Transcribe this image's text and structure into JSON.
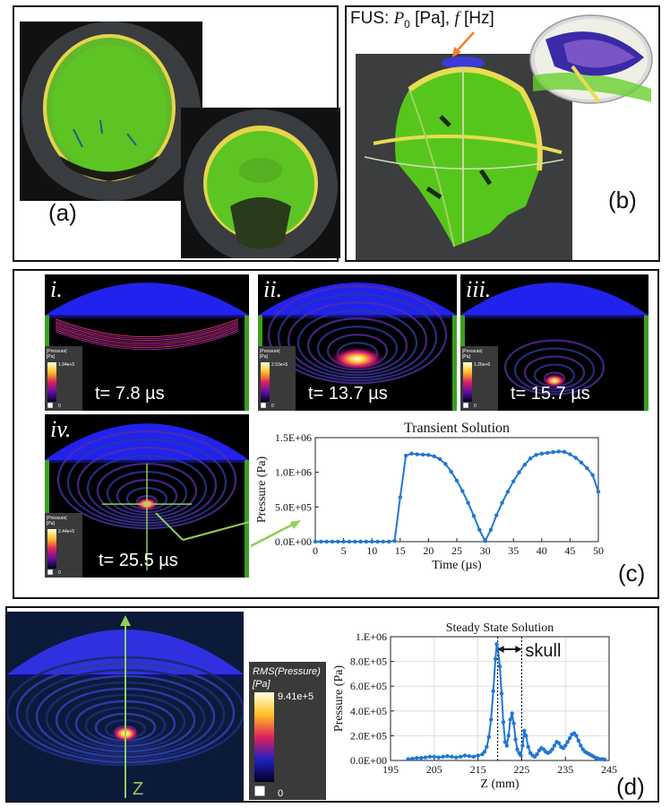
{
  "panels": {
    "a": {
      "label": "(a)"
    },
    "b": {
      "label": "(b)",
      "fus_prefix": "FUS: ",
      "fus_p": "P",
      "fus_sub": "0",
      "fus_unit1": " [Pa], ",
      "fus_f": "f",
      "fus_unit2": " [Hz]"
    },
    "c": {
      "label": "(c)"
    },
    "d": {
      "label": "(d)"
    }
  },
  "snapshots": [
    {
      "roman": "i.",
      "time": "t= 7.8 µs",
      "cb_title": "|Pressure|",
      "cb_unit": "[Pa]",
      "cb_max": "1.94e+5",
      "cb_min": "0"
    },
    {
      "roman": "ii.",
      "time": "t= 13.7 µs",
      "cb_title": "|Pressure|",
      "cb_unit": "[Pa]",
      "cb_max": "2.53e+5",
      "cb_min": "0"
    },
    {
      "roman": "iii.",
      "time": "t= 15.7 µs",
      "cb_title": "|Pressure|",
      "cb_unit": "[Pa]",
      "cb_max": "1.26e+6",
      "cb_min": "0"
    },
    {
      "roman": "iv.",
      "time": "t= 25.5 µs",
      "cb_title": "|Pressure|",
      "cb_unit": "[Pa]",
      "cb_max": "2.44e+5",
      "cb_min": "0"
    }
  ],
  "steady_sim": {
    "axis_label": "Z",
    "cb_title": "RMS(Pressure)",
    "cb_unit": "[Pa]",
    "cb_max": "9.41e+5",
    "cb_min": "0"
  },
  "colors": {
    "green": "#66cc33",
    "tissue": "#4ec41e",
    "skull": "#e8dc50",
    "transducer": "#2222ee",
    "plot_blue": "#1f77d4",
    "arrow_green": "#8fcf5a"
  },
  "chart_data": [
    {
      "type": "line",
      "title": "Transient Solution",
      "xlabel": "Time (µs)",
      "ylabel": "Pressure (Pa)",
      "xlim": [
        0,
        50
      ],
      "ylim": [
        0,
        1500000
      ],
      "xticks": [
        0,
        5,
        10,
        15,
        20,
        25,
        30,
        35,
        40,
        45,
        50
      ],
      "xtick_labels": [
        "0",
        "5",
        "10",
        "15",
        "20",
        "25",
        "30",
        "35",
        "40",
        "45",
        "50"
      ],
      "yticks": [
        0,
        500000,
        1000000,
        1500000
      ],
      "ytick_labels": [
        "0.0E+00",
        "5.0E+05",
        "1.0E+06",
        "1.5E+06"
      ],
      "grid": false,
      "x": [
        0,
        1,
        2,
        3,
        4,
        5,
        6,
        7,
        8,
        9,
        10,
        11,
        12,
        13,
        14,
        15,
        16,
        17,
        18,
        19,
        20,
        21,
        22,
        23,
        24,
        25,
        26,
        27,
        28,
        29,
        30,
        31,
        32,
        33,
        34,
        35,
        36,
        37,
        38,
        39,
        40,
        41,
        42,
        43,
        44,
        45,
        46,
        47,
        48,
        49,
        50
      ],
      "y": [
        0,
        0,
        0,
        0,
        0,
        0,
        0,
        0,
        0,
        0,
        0,
        0,
        0,
        0,
        10000,
        640000,
        1240000,
        1270000,
        1260000,
        1255000,
        1250000,
        1230000,
        1190000,
        1120000,
        1010000,
        880000,
        730000,
        560000,
        370000,
        170000,
        10000,
        170000,
        380000,
        560000,
        720000,
        870000,
        1000000,
        1110000,
        1200000,
        1250000,
        1270000,
        1280000,
        1290000,
        1300000,
        1295000,
        1260000,
        1210000,
        1140000,
        1060000,
        960000,
        720000
      ]
    },
    {
      "type": "line",
      "title": "Steady State Solution",
      "xlabel": "Z (mm)",
      "ylabel": "Pressure (Pa)",
      "xlim": [
        195,
        245
      ],
      "ylim": [
        0,
        1000000
      ],
      "xticks": [
        195,
        205,
        215,
        225,
        235,
        245
      ],
      "xtick_labels": [
        "195",
        "205",
        "215",
        "225",
        "235",
        "245"
      ],
      "yticks": [
        0,
        200000,
        400000,
        600000,
        800000,
        1000000
      ],
      "ytick_labels": [
        "0.0E+00",
        "2.0E+05",
        "4.0E+05",
        "6.0E+05",
        "8.0E+05",
        "1.E+06"
      ],
      "grid": true,
      "annotation": "skull",
      "vlines": [
        219.5,
        225
      ],
      "x": [
        199,
        200,
        201,
        202,
        203,
        204,
        205,
        206,
        207,
        208,
        209,
        210,
        211,
        212,
        213,
        214,
        215,
        216,
        216.5,
        217,
        217.5,
        218,
        218.5,
        219,
        219.3,
        219.6,
        220,
        220.4,
        220.8,
        221.2,
        221.6,
        222,
        222.4,
        222.8,
        223.2,
        223.6,
        224,
        224.4,
        224.8,
        225.2,
        225.6,
        226,
        226.5,
        227,
        227.5,
        228,
        228.5,
        229,
        229.5,
        230,
        230.5,
        231,
        231.5,
        232,
        232.5,
        233,
        233.5,
        234,
        234.5,
        235,
        235.5,
        236,
        236.5,
        237,
        237.5,
        238,
        238.5,
        239,
        239.5,
        240,
        240.5,
        241,
        241.5,
        242,
        242.5,
        243,
        243.5,
        244
      ],
      "y": [
        10000,
        15000,
        20000,
        20000,
        25000,
        30000,
        30000,
        25000,
        30000,
        35000,
        30000,
        25000,
        30000,
        40000,
        35000,
        30000,
        40000,
        50000,
        70000,
        110000,
        190000,
        330000,
        560000,
        820000,
        940000,
        900000,
        760000,
        540000,
        310000,
        150000,
        120000,
        200000,
        330000,
        380000,
        300000,
        170000,
        90000,
        60000,
        40000,
        120000,
        240000,
        200000,
        110000,
        60000,
        40000,
        30000,
        50000,
        80000,
        100000,
        90000,
        70000,
        60000,
        70000,
        90000,
        120000,
        150000,
        140000,
        110000,
        100000,
        120000,
        150000,
        180000,
        210000,
        220000,
        200000,
        160000,
        120000,
        90000,
        70000,
        60000,
        50000,
        40000,
        30000,
        20000,
        15000,
        10000,
        10000,
        8000
      ]
    }
  ]
}
